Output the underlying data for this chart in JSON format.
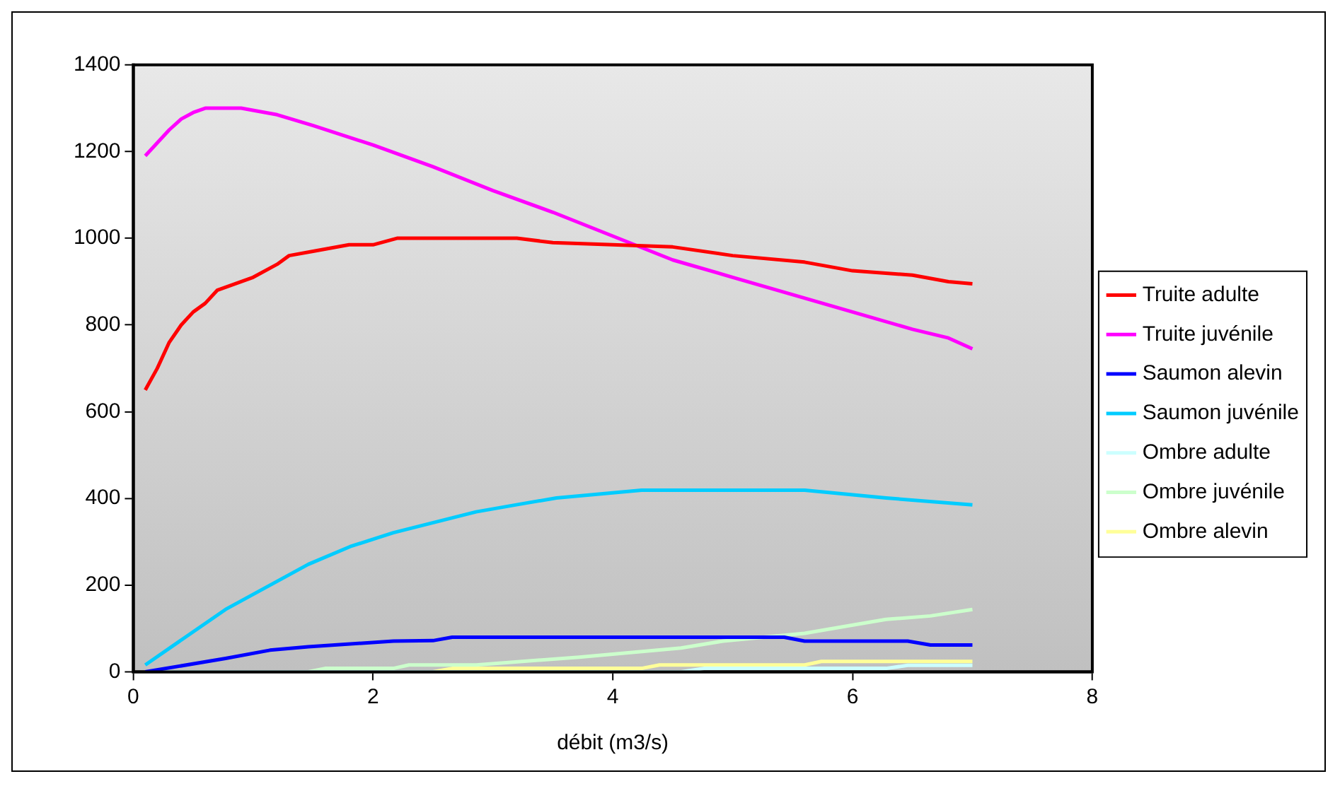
{
  "chart_data": {
    "type": "line",
    "xlabel": "débit (m3/s)",
    "xlim": [
      0,
      8
    ],
    "xticks": [
      0,
      2,
      4,
      6,
      8
    ],
    "ylim": [
      0,
      1400
    ],
    "yticks": [
      0,
      200,
      400,
      600,
      800,
      1000,
      1200,
      1400
    ],
    "grid": false,
    "legend": "right",
    "marker": "none",
    "line_style": "solid",
    "series": [
      {
        "name": "Truite adulte",
        "color": "#ff0000",
        "x": [
          0.1,
          0.2,
          0.3,
          0.4,
          0.5,
          0.6,
          0.7,
          1,
          1.2,
          1.3,
          1.5,
          1.8,
          2,
          2.2,
          3.2,
          3.5,
          4,
          4.5,
          5,
          5.6,
          6,
          6.5,
          6.8,
          7
        ],
        "values": [
          650,
          700,
          760,
          800,
          830,
          850,
          880,
          910,
          940,
          960,
          970,
          985,
          985,
          1000,
          1000,
          990,
          985,
          980,
          960,
          945,
          925,
          915,
          900,
          895
        ]
      },
      {
        "name": "Truite juvénile",
        "color": "#ff00ff",
        "x": [
          0.1,
          0.3,
          0.4,
          0.5,
          0.6,
          0.9,
          1.2,
          1.5,
          2,
          2.5,
          3,
          3.5,
          4,
          4.5,
          5,
          5.5,
          6,
          6.5,
          6.8,
          7
        ],
        "values": [
          1190,
          1250,
          1275,
          1290,
          1300,
          1300,
          1285,
          1260,
          1215,
          1165,
          1110,
          1060,
          1005,
          950,
          910,
          870,
          830,
          790,
          770,
          745
        ]
      },
      {
        "name": "Saumon alevin",
        "color": "#0000ff",
        "x": [
          0.1,
          0.77,
          1.14,
          1.46,
          2.17,
          2.5,
          2.66,
          5.43,
          5.6,
          6.46,
          6.65,
          7
        ],
        "values": [
          0,
          31,
          50,
          58,
          71,
          72,
          80,
          80,
          71,
          71,
          62,
          62
        ]
      },
      {
        "name": "Saumon juvénile",
        "color": "#00ccff",
        "x": [
          0.1,
          0.77,
          1.46,
          1.81,
          2.17,
          2.86,
          3.23,
          3.53,
          4.24,
          5.6,
          6.28,
          7
        ],
        "values": [
          16,
          144,
          248,
          289,
          321,
          369,
          387,
          401,
          419,
          419,
          401,
          385
        ]
      },
      {
        "name": "Ombre adulte",
        "color": "#ccffff",
        "x": [
          0.1,
          4.57,
          4.76,
          6.28,
          6.46,
          7
        ],
        "values": [
          0,
          0,
          8,
          8,
          15,
          15
        ]
      },
      {
        "name": "Ombre juvénile",
        "color": "#ccffcc",
        "x": [
          0.1,
          1.46,
          1.6,
          2.17,
          2.3,
          2.86,
          3.72,
          4.57,
          4.92,
          5.6,
          5.96,
          6.28,
          6.65,
          7
        ],
        "values": [
          0,
          0,
          8,
          8,
          16,
          16,
          34,
          55,
          71,
          89,
          106,
          121,
          129,
          144
        ]
      },
      {
        "name": "Ombre alevin",
        "color": "#ffff99",
        "x": [
          0.1,
          2.5,
          2.66,
          4.24,
          4.39,
          5.6,
          5.74,
          7
        ],
        "values": [
          0,
          0,
          8,
          8,
          16,
          16,
          24,
          24
        ]
      }
    ]
  }
}
